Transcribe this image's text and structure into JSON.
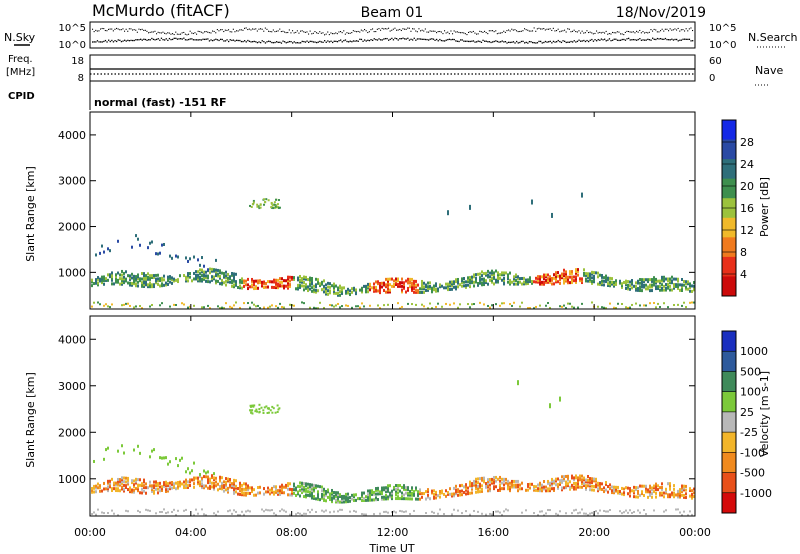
{
  "header": {
    "station": "McMurdo (fitACF)",
    "beam": "Beam 01",
    "date": "18/Nov/2019"
  },
  "top_panels": {
    "nsky_label": "N.Sky",
    "nsearch_label": "N.Search",
    "freq_label_1": "Freq.",
    "freq_label_2": "[MHz]",
    "nave_label": "Nave",
    "cpid_label": "CPID",
    "cpid_text": "normal (fast) -151 RF",
    "noise_ticks_left": [
      "10^5",
      "10^0"
    ],
    "noise_ticks_right": [
      "10^5",
      "10^0"
    ],
    "freq_ticks": [
      "18",
      "8"
    ],
    "nave_ticks": [
      "60",
      "0"
    ]
  },
  "chart_data": [
    {
      "type": "heatmap",
      "name": "power",
      "ylabel": "Slant Range [km]",
      "ylim": [
        200,
        4500
      ],
      "yticks": [
        "4000",
        "3000",
        "2000",
        "1000"
      ],
      "colorbar_label": "Power [dB]",
      "colorbar_ticks": [
        "28",
        "24",
        "20",
        "16",
        "12",
        "8",
        "4"
      ],
      "colors": [
        "#1428e6",
        "#2a4aa4",
        "#2f6f7a",
        "#3e8f4e",
        "#9cc23c",
        "#f0b92a",
        "#f07a1e",
        "#e8301a",
        "#cc0a0a"
      ]
    },
    {
      "type": "heatmap",
      "name": "velocity",
      "ylabel": "Slant Range [km]",
      "ylim": [
        200,
        4500
      ],
      "yticks": [
        "4000",
        "3000",
        "2000",
        "1000"
      ],
      "colorbar_label": "Velocity [m s-1]",
      "colorbar_ticks": [
        "1000",
        "500",
        "100",
        "25",
        "-25",
        "-100",
        "-500",
        "-1000"
      ],
      "colors": [
        "#1a2fbf",
        "#2e5a9c",
        "#3f8a5a",
        "#7cc93a",
        "#b8b8b8",
        "#f2b52a",
        "#f08a1e",
        "#e8501a",
        "#d40a0a"
      ]
    }
  ],
  "xaxis": {
    "ticks": [
      "00:00",
      "04:00",
      "08:00",
      "12:00",
      "16:00",
      "20:00",
      "00:00"
    ],
    "label": "Time UT"
  }
}
